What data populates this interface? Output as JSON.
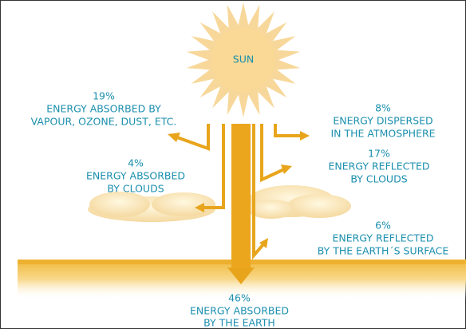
{
  "sun": "SUN",
  "flows": [
    {
      "percent": "19%",
      "lines": [
        "ENERGY ABSORBED BY",
        "VAPOUR, OZONE, DUST, ETC."
      ]
    },
    {
      "percent": "8%",
      "lines": [
        "ENERGY DISPERSED",
        "IN THE ATMOSPHERE"
      ]
    },
    {
      "percent": "4%",
      "lines": [
        "ENERGY ABSORBED",
        "BY CLOUDS"
      ]
    },
    {
      "percent": "17%",
      "lines": [
        "ENERGY REFLECTED",
        "BY CLOUDS"
      ]
    },
    {
      "percent": "6%",
      "lines": [
        "ENERGY REFLECTED",
        "BY THE EARTH´S SURFACE"
      ]
    },
    {
      "percent": "46%",
      "lines": [
        "ENERGY ABSORBED",
        "BY THE EARTH"
      ]
    }
  ]
}
